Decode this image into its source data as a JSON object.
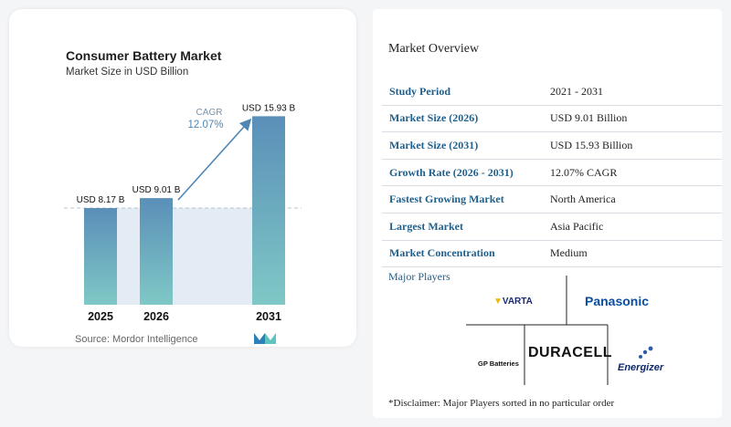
{
  "chart_data": {
    "type": "bar",
    "title": "Consumer Battery Market",
    "subtitle": "Market Size in USD Billion",
    "categories": [
      "2025",
      "2026",
      "2031"
    ],
    "values": [
      8.17,
      9.01,
      15.93
    ],
    "data_labels": [
      "USD 8.17 B",
      "USD 9.01 B",
      "USD 15.93 B"
    ],
    "ylim": [
      0,
      16.5
    ],
    "annotation": {
      "label": "CAGR",
      "value": "12.07%"
    },
    "colors": {
      "bar_top": "#5a8fb8",
      "bar_bottom": "#7fc8c6",
      "band": "#e3ecf5",
      "arrow": "#4f86b3"
    }
  },
  "source": "Source: Mordor Intelligence",
  "overview": {
    "title": "Market Overview",
    "rows": [
      {
        "label": "Study Period",
        "value": "2021 - 2031"
      },
      {
        "label": "Market Size (2026)",
        "value": "USD 9.01 Billion"
      },
      {
        "label": "Market Size (2031)",
        "value": "USD 15.93 Billion"
      },
      {
        "label": "Growth Rate (2026 - 2031)",
        "value": "12.07% CAGR"
      },
      {
        "label": "Fastest Growing Market",
        "value": "North America"
      },
      {
        "label": "Largest Market",
        "value": "Asia Pacific"
      },
      {
        "label": "Market Concentration",
        "value": "Medium"
      }
    ]
  },
  "major_players": {
    "title": "Major Players",
    "logos": [
      "VARTA",
      "Panasonic",
      "DURACELL",
      "GP Batteries",
      "Energizer"
    ]
  },
  "disclaimer": "*Disclaimer: Major Players sorted in no particular order"
}
